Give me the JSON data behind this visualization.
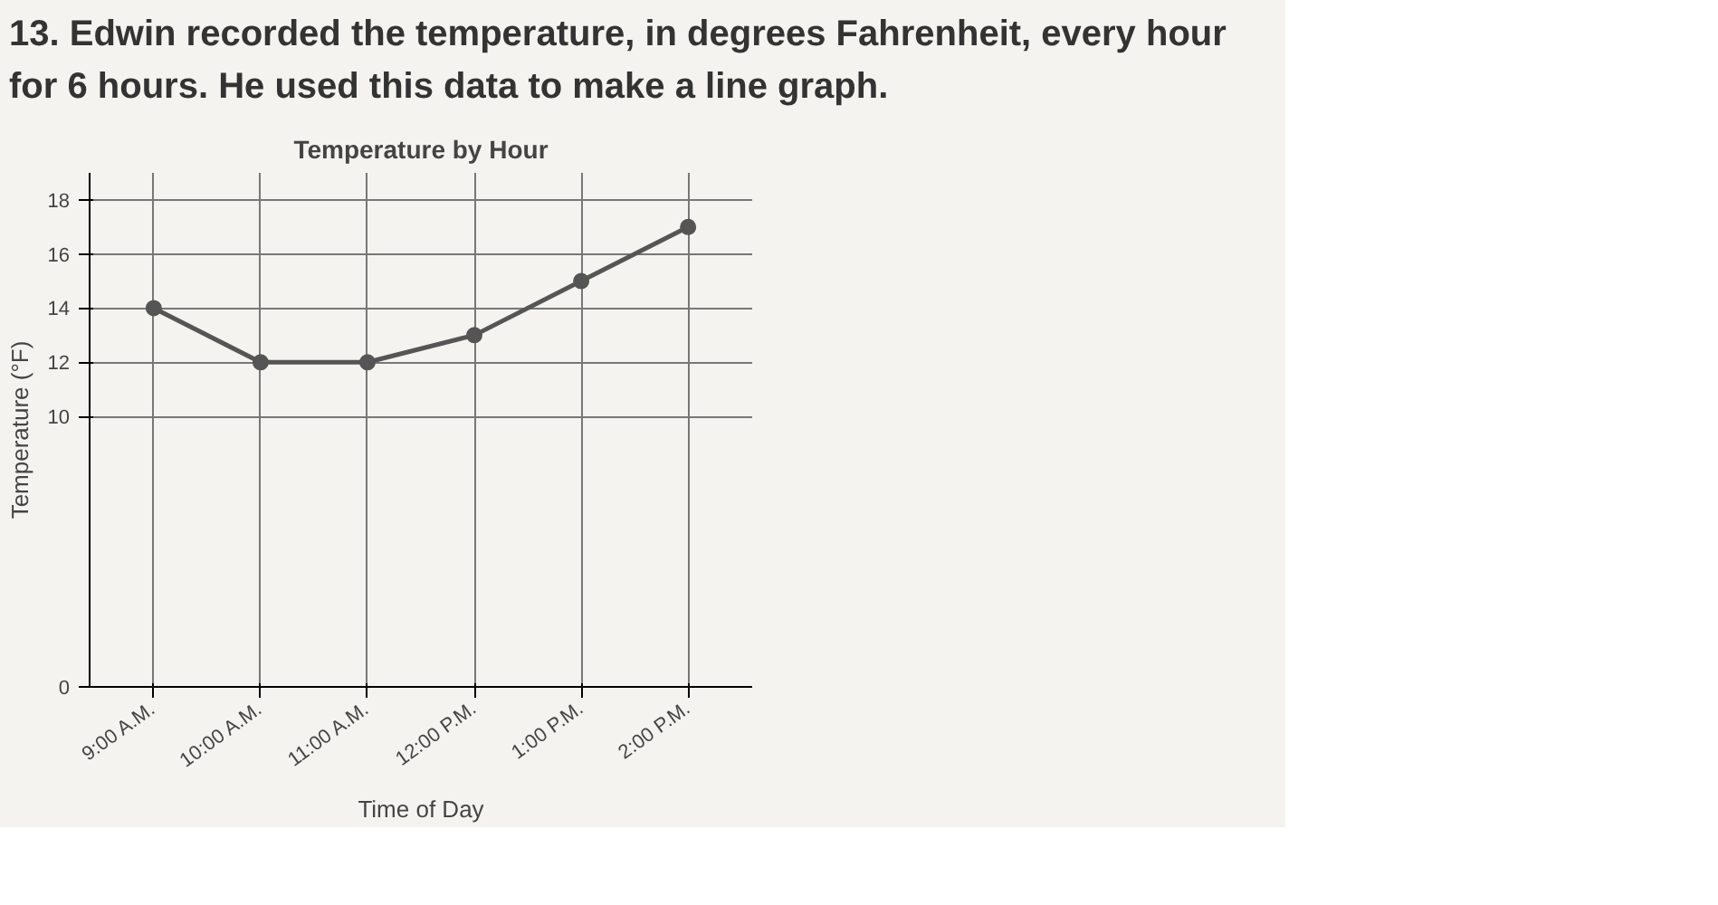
{
  "chart_data": {
    "type": "line",
    "title": "Temperature by Hour",
    "xlabel": "Time of Day",
    "ylabel": "Temperature (°F)",
    "annotations": [
      "13. Edwin recorded the temperature, in degrees Fahrenheit, every hour for 6 hours. He used this data to make a line graph."
    ],
    "categories": [
      "9:00 A.M.",
      "10:00 A.M.",
      "11:00 A.M.",
      "12:00 P.M.",
      "1:00 P.M.",
      "2:00 P.M."
    ],
    "series": [
      {
        "color": "#555555",
        "values": [
          14,
          12,
          12,
          13,
          15,
          17
        ]
      }
    ],
    "ylim": [
      0,
      19
    ],
    "yticks": [
      0,
      10,
      12,
      14,
      16,
      18
    ],
    "grid": true,
    "marker": "circle",
    "line_style": "solid"
  }
}
